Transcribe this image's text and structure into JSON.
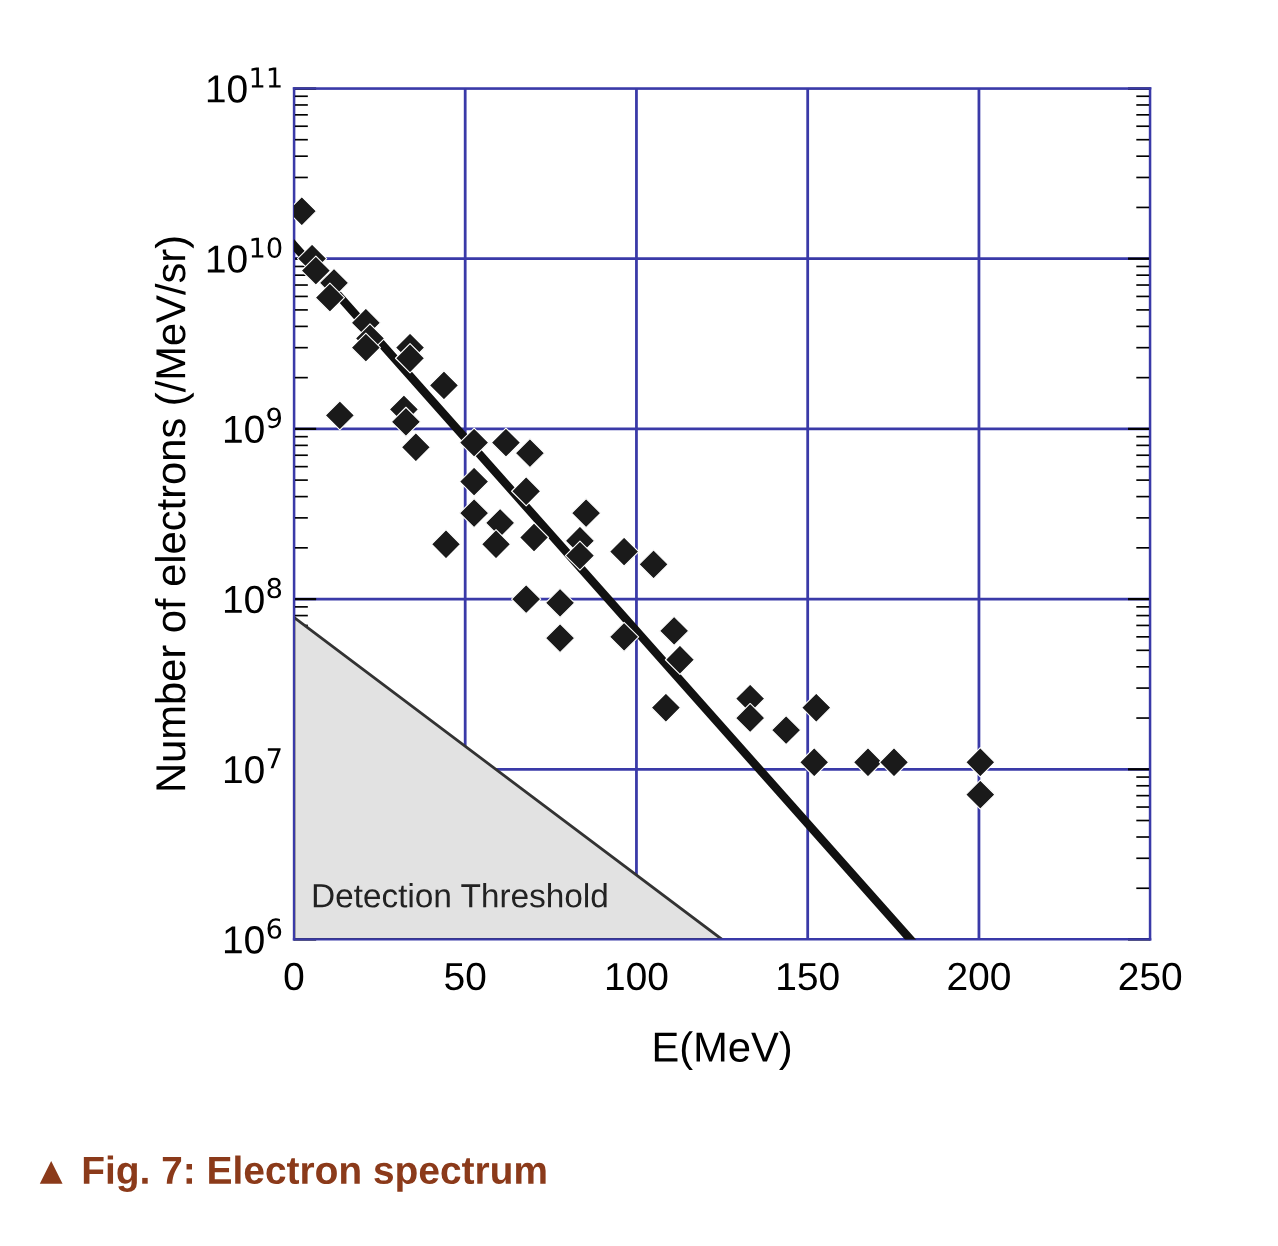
{
  "chart_data": {
    "type": "scatter",
    "xlabel": "E(MeV)",
    "ylabel": "Number of electrons (/MeV/sr)",
    "xlim": [
      0,
      250
    ],
    "xticks": [
      0,
      50,
      100,
      150,
      200,
      250
    ],
    "ylim": [
      1000000,
      100000000000
    ],
    "log": "y",
    "yticks": [
      {
        "value": 1000000,
        "label": "10$^{6}$"
      },
      {
        "value": 10000000,
        "label": "10$^{7}$"
      },
      {
        "value": 100000000,
        "label": "10$^{8}$"
      },
      {
        "value": 1000000000,
        "label": "10$^{9}$"
      },
      {
        "value": 10000000000,
        "label": "10$^{10}$"
      },
      {
        "value": 100000000000,
        "label": "10$^{11}$"
      }
    ],
    "grid": true,
    "annotations": [
      "▲ Fig. 7: Electron spectrum"
    ],
    "series": [
      {
        "type": "area",
        "name": "Detection Threshold",
        "color": "#e2e2e2",
        "x": [
          0,
          125
        ],
        "values": [
          78000000,
          1000000
        ]
      },
      {
        "marker": "diamond",
        "color": "#1a1a1a",
        "x": [
          2.3,
          5.3,
          6.4,
          11.7,
          10.5,
          21,
          22.2,
          21,
          33.9,
          33.9,
          43.8,
          13.4,
          32.1,
          32.7,
          35.6,
          52.6,
          61.9,
          68.9,
          52.6,
          67.8,
          52.6,
          60.2,
          85.3,
          44.4,
          59,
          70.1,
          83.5,
          83.5,
          96.4,
          105,
          67.8,
          77.7,
          77.7,
          96.4,
          111,
          112.7,
          108.6,
          133.2,
          133.2,
          143.7,
          152.5,
          151.9,
          167.6,
          175.2,
          200.4,
          200.4
        ],
        "values": [
          19000000000,
          10000000000,
          8500000000,
          7200000000,
          5900000000,
          4200000000,
          3400000000,
          3000000000,
          3000000000,
          2600000000,
          1800000000,
          1200000000,
          1300000000,
          1100000000,
          780000000,
          830000000,
          830000000,
          720000000,
          490000000,
          430000000,
          320000000,
          280000000,
          320000000,
          210000000,
          210000000,
          230000000,
          220000000,
          180000000,
          190000000,
          160000000,
          100000000,
          95000000,
          59000000,
          60000000,
          65000000,
          44000000,
          23000000,
          26000000,
          20000000,
          17000000,
          23000000,
          11000000,
          11000000,
          11000000,
          11000000,
          7100000
        ]
      },
      {
        "type": "line",
        "color": "#111111",
        "x": [
          0,
          180
        ],
        "values": [
          12000000000,
          1000000
        ]
      }
    ]
  }
}
